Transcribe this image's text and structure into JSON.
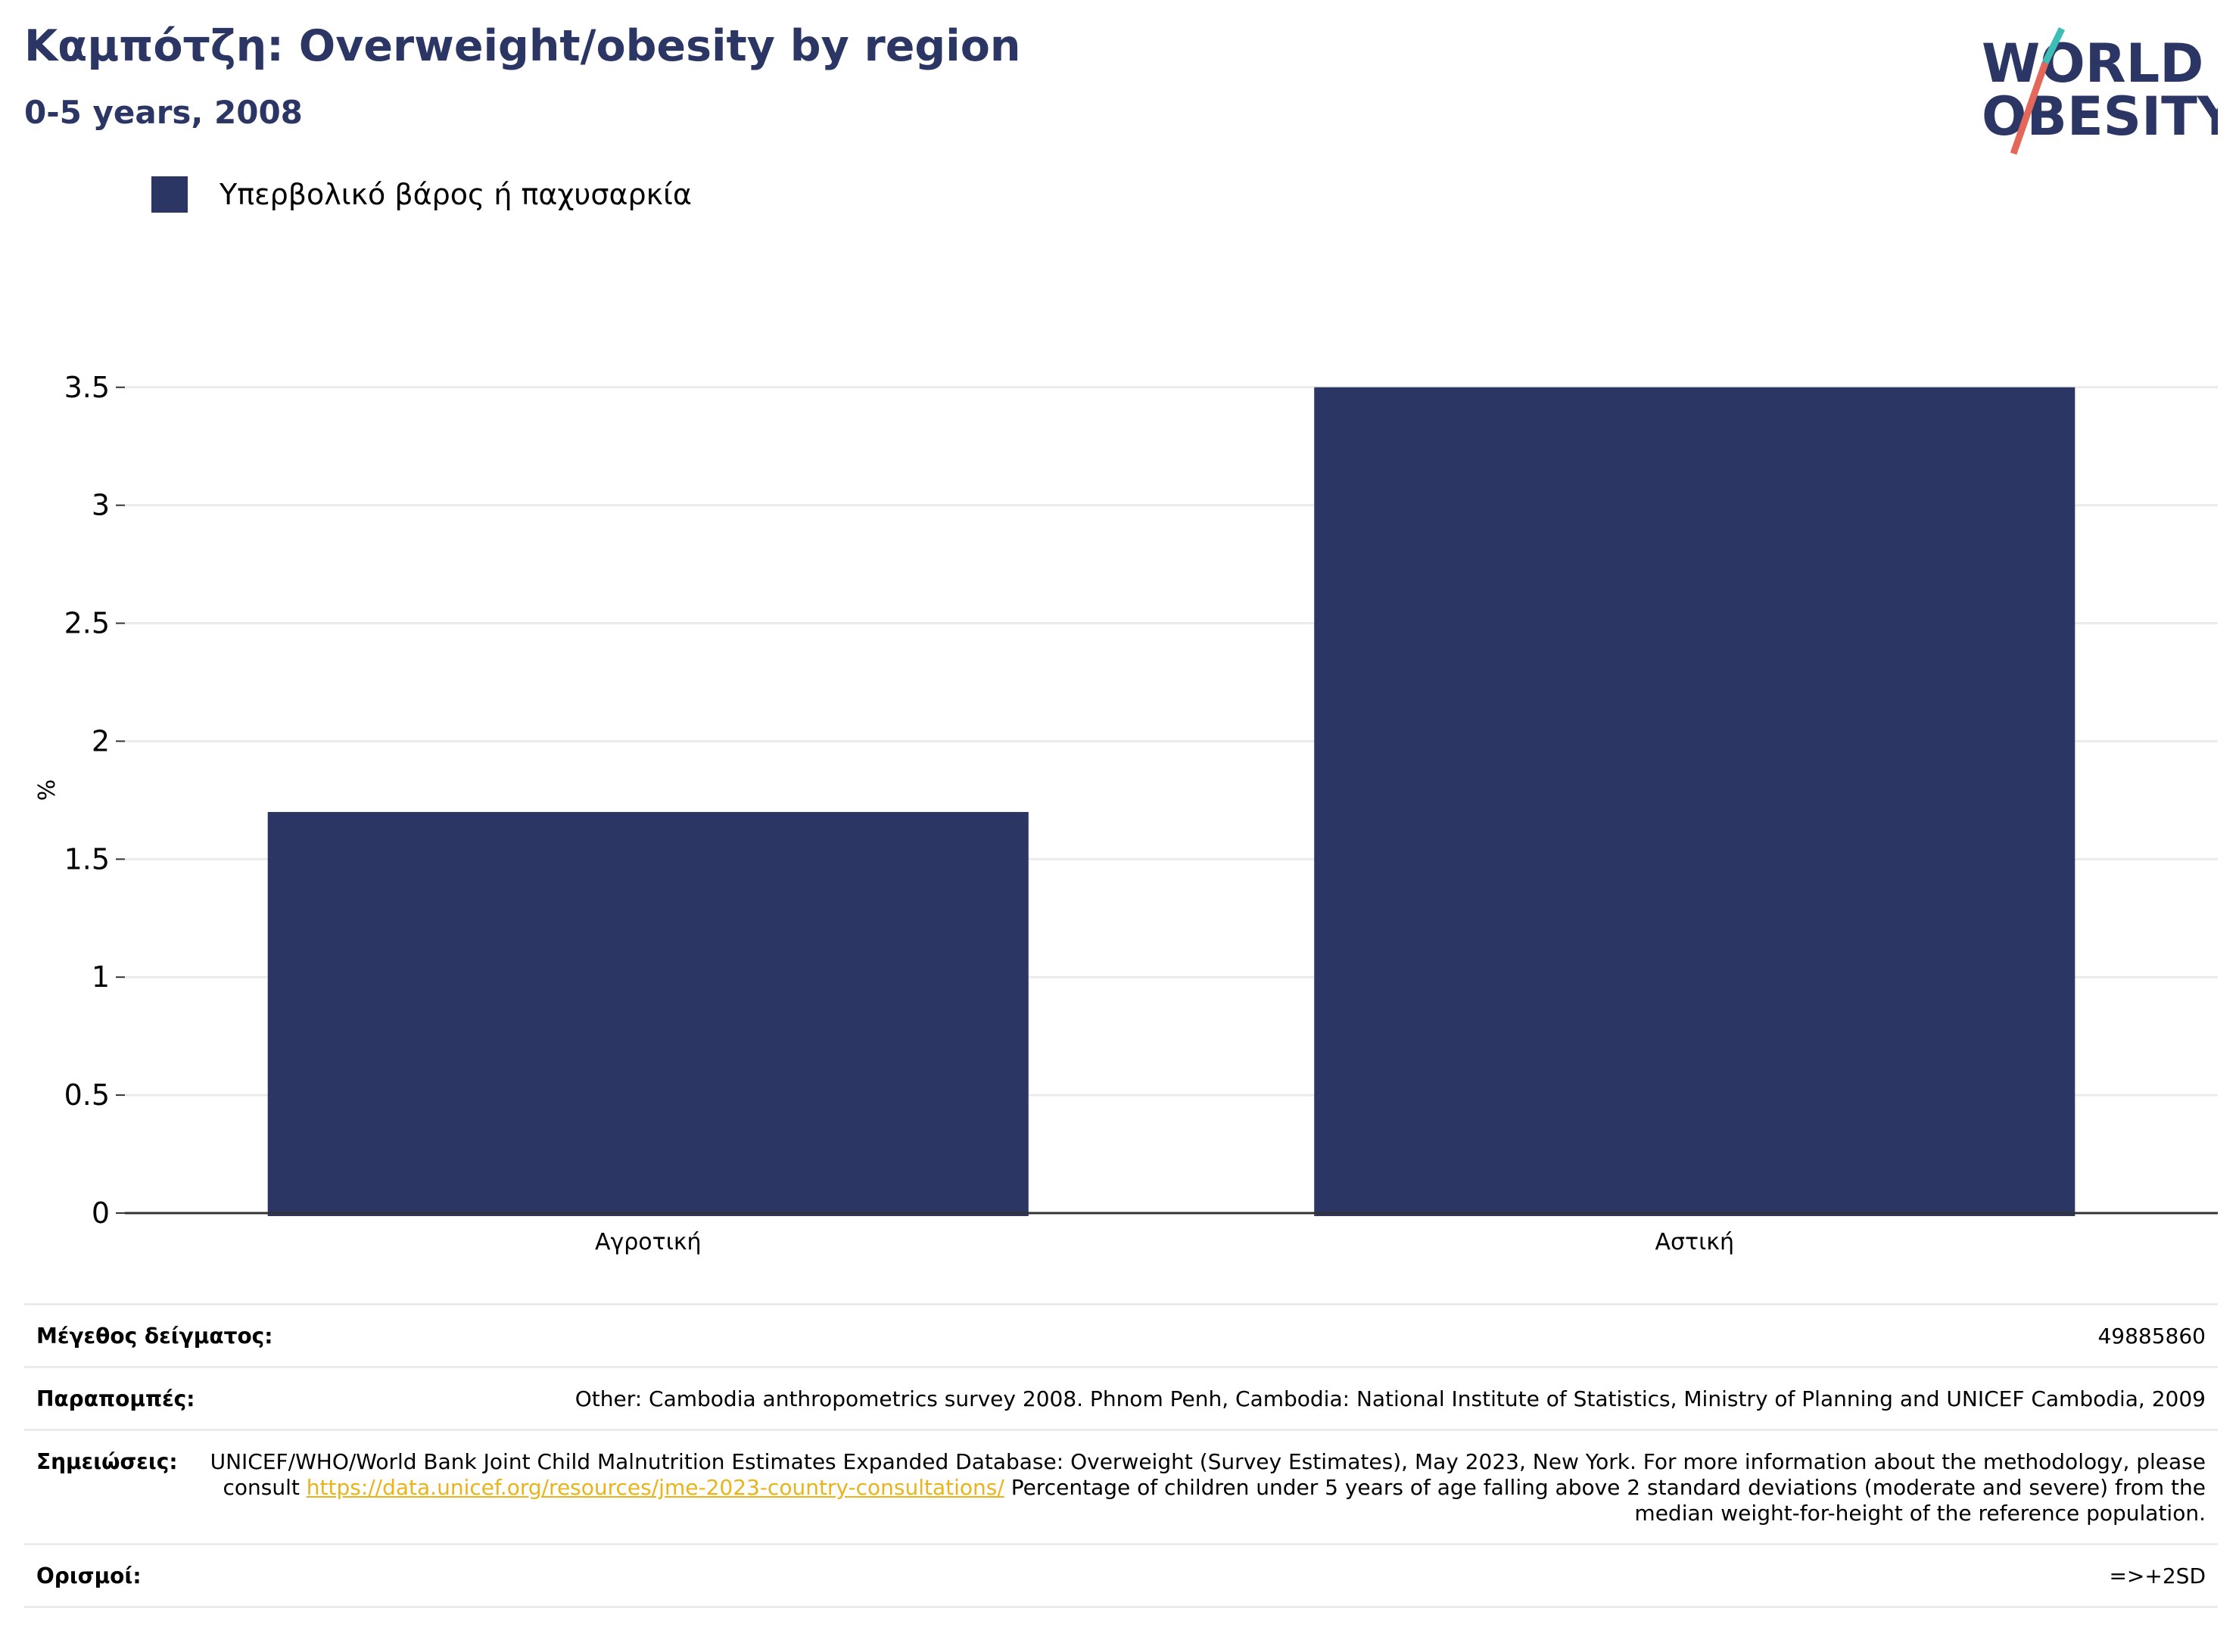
{
  "header": {
    "title": "Καμπότζη: Overweight/obesity by region",
    "subtitle": "0-5 years, 2008"
  },
  "logo": {
    "line1": "WORLD",
    "line2": "OBESITY",
    "colors": {
      "text": "#2b3664",
      "slash_top": "#3dbdb6",
      "slash_bottom": "#e4685a"
    }
  },
  "colors": {
    "bar": "#2b3664",
    "title": "#2b3664",
    "grid": "#ebebeb",
    "axis": "#333333",
    "link": "#e8b419"
  },
  "chart_data": {
    "type": "bar",
    "title": "Καμπότζη: Overweight/obesity by region",
    "subtitle": "0-5 years, 2008",
    "xlabel": "",
    "ylabel": "%",
    "categories": [
      "Αγροτική",
      "Αστική"
    ],
    "series": [
      {
        "name": "Υπερβολικό βάρος ή παχυσαρκία",
        "color": "#2b3664",
        "values": [
          1.7,
          3.5
        ]
      }
    ],
    "ylim": [
      0,
      3.65
    ],
    "yticks": [
      0,
      0.5,
      1,
      1.5,
      2,
      2.5,
      3,
      3.5
    ],
    "ytick_labels": [
      "0",
      "0.5",
      "1",
      "1.5",
      "2",
      "2.5",
      "3",
      "3.5"
    ],
    "grid": true,
    "legend_position": "top-left"
  },
  "info": {
    "rows": [
      {
        "label": "Μέγεθος δείγματος:",
        "value": "49885860"
      },
      {
        "label": "Παραπομπές:",
        "value": "Other: Cambodia anthropometrics survey 2008. Phnom Penh, Cambodia: National Institute of Statistics, Ministry of Planning and UNICEF Cambodia, 2009"
      },
      {
        "label": "Σημειώσεις:",
        "value_before": "UNICEF/WHO/World Bank Joint Child Malnutrition Estimates Expanded Database: Overweight (Survey Estimates), May 2023, New York. For more information about the methodology, please consult ",
        "link": "https://data.unicef.org/resources/jme-2023-country-consultations/",
        "value_after": " Percentage of children under 5 years of age falling above 2 standard deviations (moderate and severe) from the median weight-for-height of the reference population."
      },
      {
        "label": "Ορισμοί:",
        "value": "=>+2SD"
      }
    ]
  }
}
